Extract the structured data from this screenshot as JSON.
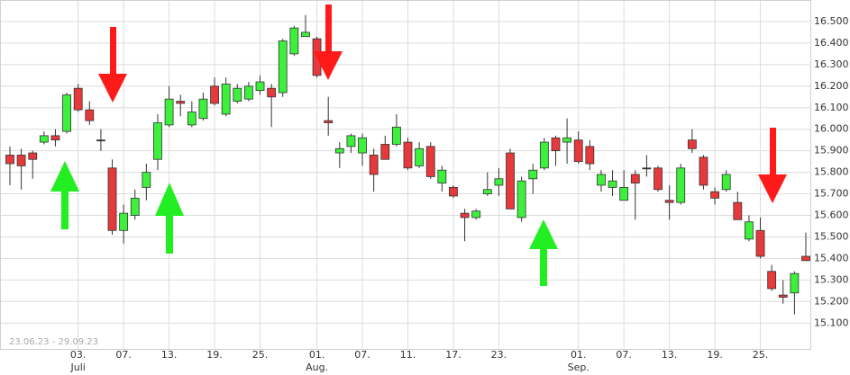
{
  "chart_data": {
    "type": "candlestick",
    "range_label": "23.06.23 - 29.09.23",
    "categories": [
      null,
      null,
      null,
      null,
      null,
      null,
      "03.",
      null,
      null,
      null,
      "07.",
      null,
      null,
      null,
      "13.",
      null,
      null,
      null,
      "19.",
      null,
      null,
      null,
      "25.",
      null,
      null,
      null,
      null,
      "01.",
      null,
      null,
      null,
      "07.",
      null,
      null,
      null,
      "11.",
      null,
      null,
      null,
      "17.",
      null,
      null,
      null,
      "23.",
      null,
      null,
      null,
      null,
      null,
      null,
      "01.",
      null,
      null,
      null,
      "07.",
      null,
      null,
      null,
      "13.",
      null,
      null,
      null,
      "19.",
      null,
      null,
      null,
      "25.",
      null,
      null,
      null,
      null
    ],
    "category_months": [
      null,
      null,
      null,
      null,
      null,
      null,
      "Juli",
      null,
      null,
      null,
      null,
      null,
      null,
      null,
      null,
      null,
      null,
      null,
      null,
      null,
      null,
      null,
      null,
      null,
      null,
      null,
      null,
      "Aug.",
      null,
      null,
      null,
      null,
      null,
      null,
      null,
      null,
      null,
      null,
      null,
      null,
      null,
      null,
      null,
      null,
      null,
      null,
      null,
      null,
      null,
      null,
      "Sep.",
      null,
      null,
      null,
      null,
      null,
      null,
      null,
      null,
      null,
      null,
      null,
      null,
      null,
      null,
      null,
      null,
      null,
      null,
      null,
      null
    ],
    "open": [
      15.88,
      15.88,
      15.89,
      15.94,
      15.97,
      15.99,
      16.19,
      16.09,
      15.95,
      15.82,
      15.53,
      15.6,
      15.73,
      15.86,
      16.02,
      16.13,
      16.02,
      16.05,
      16.2,
      16.07,
      16.13,
      16.14,
      16.18,
      16.19,
      16.17,
      16.35,
      16.43,
      16.42,
      16.04,
      15.89,
      15.92,
      15.89,
      15.88,
      15.93,
      15.93,
      15.94,
      15.83,
      15.92,
      15.75,
      15.73,
      15.61,
      15.59,
      15.7,
      15.74,
      15.89,
      15.59,
      15.77,
      15.82,
      15.96,
      15.94,
      15.95,
      15.92,
      15.74,
      15.73,
      15.67,
      15.79,
      15.82,
      15.82,
      15.67,
      15.66,
      15.95,
      15.87,
      15.71,
      15.72,
      15.66,
      15.49,
      15.53,
      15.34,
      15.23,
      15.24,
      15.41
    ],
    "high": [
      15.92,
      15.91,
      15.9,
      15.99,
      16.0,
      16.17,
      16.21,
      16.13,
      16.0,
      15.86,
      15.65,
      15.72,
      15.84,
      16.07,
      16.2,
      16.16,
      16.13,
      16.17,
      16.24,
      16.24,
      16.21,
      16.22,
      16.25,
      16.21,
      16.42,
      16.48,
      16.53,
      16.43,
      16.15,
      15.94,
      15.98,
      15.98,
      15.91,
      15.97,
      16.07,
      15.96,
      15.94,
      15.94,
      15.83,
      15.74,
      15.63,
      15.63,
      15.8,
      15.82,
      15.91,
      15.78,
      15.84,
      15.96,
      15.97,
      16.05,
      15.99,
      15.95,
      15.81,
      15.81,
      15.81,
      15.81,
      15.88,
      15.83,
      15.74,
      15.84,
      16.0,
      15.88,
      15.73,
      15.81,
      15.71,
      15.6,
      15.59,
      15.37,
      15.3,
      15.34,
      15.52
    ],
    "low": [
      15.74,
      15.72,
      15.77,
      15.93,
      15.92,
      15.98,
      16.08,
      16.02,
      15.9,
      15.51,
      15.47,
      15.58,
      15.67,
      15.81,
      16.01,
      16.06,
      16.01,
      16.04,
      16.11,
      16.06,
      16.12,
      16.13,
      16.16,
      16.01,
      16.15,
      16.34,
      16.43,
      16.24,
      15.97,
      15.82,
      15.89,
      15.83,
      15.71,
      15.86,
      15.92,
      15.81,
      15.82,
      15.77,
      15.71,
      15.68,
      15.48,
      15.58,
      15.69,
      15.69,
      15.63,
      15.57,
      15.7,
      15.81,
      15.83,
      15.84,
      15.84,
      15.81,
      15.71,
      15.69,
      15.67,
      15.58,
      15.78,
      15.71,
      15.58,
      15.65,
      15.89,
      15.72,
      15.65,
      15.71,
      15.58,
      15.48,
      15.4,
      15.25,
      15.19,
      15.14,
      15.39
    ],
    "close": [
      15.84,
      15.83,
      15.86,
      15.97,
      15.95,
      16.16,
      16.09,
      16.04,
      15.95,
      15.53,
      15.61,
      15.68,
      15.8,
      16.03,
      16.14,
      16.12,
      16.08,
      16.14,
      16.12,
      16.21,
      16.19,
      16.2,
      16.22,
      16.15,
      16.41,
      16.47,
      16.45,
      16.25,
      16.03,
      15.91,
      15.97,
      15.96,
      15.79,
      15.86,
      16.01,
      15.82,
      15.91,
      15.78,
      15.81,
      15.69,
      15.59,
      15.62,
      15.72,
      15.77,
      15.63,
      15.76,
      15.81,
      15.94,
      15.9,
      15.96,
      15.85,
      15.84,
      15.79,
      15.76,
      15.73,
      15.75,
      15.82,
      15.72,
      15.66,
      15.82,
      15.91,
      15.74,
      15.68,
      15.79,
      15.58,
      15.57,
      15.41,
      15.26,
      15.22,
      15.33,
      15.39
    ],
    "up_color": "#3cf03c",
    "down_color": "#e5393b",
    "ylim": [
      14.98,
      16.6
    ],
    "yticks": [
      {
        "value": 15.1,
        "label": "15.100"
      },
      {
        "value": 15.2,
        "label": "15.200"
      },
      {
        "value": 15.3,
        "label": "15.300"
      },
      {
        "value": 15.4,
        "label": "15.400"
      },
      {
        "value": 15.5,
        "label": "15.500"
      },
      {
        "value": 15.6,
        "label": "15.600"
      },
      {
        "value": 15.7,
        "label": "15.700"
      },
      {
        "value": 15.8,
        "label": "15.800"
      },
      {
        "value": 15.9,
        "label": "15.900"
      },
      {
        "value": 16.0,
        "label": "16.000"
      },
      {
        "value": 16.1,
        "label": "16.100"
      },
      {
        "value": 16.2,
        "label": "16.200"
      },
      {
        "value": 16.3,
        "label": "16.300"
      },
      {
        "value": 16.4,
        "label": "16.400"
      },
      {
        "value": 16.5,
        "label": "16.500"
      }
    ],
    "grid": true
  }
}
